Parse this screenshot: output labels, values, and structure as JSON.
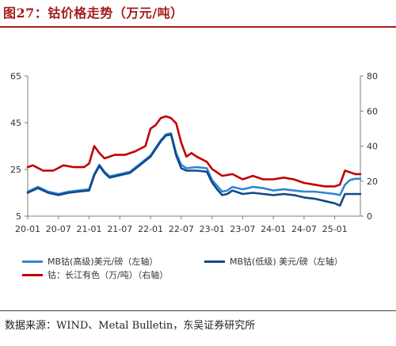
{
  "header": {
    "title": "图27：钴价格走势（万元/吨）"
  },
  "footer": {
    "source": "数据来源：WIND、Metal Bulletin，东吴证券研究所"
  },
  "colors": {
    "mb_high": "#2e86d6",
    "mb_low": "#0f4a8a",
    "co_cn": "#c00000",
    "axis": "#7f7f7f"
  },
  "chart_data": {
    "type": "line",
    "title": "",
    "xlabel": "",
    "ylabel_left": "",
    "ylabel_right": "",
    "xlim": [
      "2020-01",
      "2025-06"
    ],
    "x_ticks": [
      "20-01",
      "20-07",
      "21-01",
      "21-07",
      "22-01",
      "22-07",
      "23-01",
      "23-07",
      "24-01",
      "24-07",
      "25-01"
    ],
    "ylim_left": [
      5,
      65
    ],
    "yticks_left": [
      "5",
      "25",
      "45",
      "65"
    ],
    "ylim_right": [
      0,
      80
    ],
    "yticks_right": [
      "0",
      "20",
      "40",
      "60",
      "80"
    ],
    "grid": false,
    "legend_position": "bottom",
    "series": [
      {
        "name": "MB钴(高级)美元/磅（左轴）",
        "axis": "left",
        "color_key": "mb_high",
        "x": [
          "2020-01",
          "2020-03",
          "2020-05",
          "2020-07",
          "2020-09",
          "2020-11",
          "2021-01",
          "2021-02",
          "2021-03",
          "2021-04",
          "2021-05",
          "2021-07",
          "2021-09",
          "2021-11",
          "2022-01",
          "2022-03",
          "2022-04",
          "2022-05",
          "2022-06",
          "2022-07",
          "2022-08",
          "2022-10",
          "2022-12",
          "2023-01",
          "2023-02",
          "2023-03",
          "2023-04",
          "2023-05",
          "2023-07",
          "2023-09",
          "2023-11",
          "2024-01",
          "2024-03",
          "2024-05",
          "2024-07",
          "2024-09",
          "2024-11",
          "2025-01",
          "2025-02",
          "2025-03",
          "2025-04",
          "2025-05",
          "2025-06"
        ],
        "y": [
          15.5,
          17.5,
          15.5,
          14.5,
          15.5,
          16.0,
          16.5,
          23.0,
          27.0,
          24.0,
          22.0,
          23.0,
          24.0,
          27.5,
          31.0,
          37.5,
          40.0,
          40.5,
          32.0,
          27.0,
          25.5,
          26.0,
          25.5,
          20.5,
          18.0,
          15.5,
          16.0,
          17.5,
          16.5,
          17.5,
          17.0,
          16.0,
          16.5,
          16.0,
          15.5,
          15.5,
          15.0,
          14.5,
          14.0,
          18.5,
          20.5,
          21.0,
          21.0
        ]
      },
      {
        "name": "MB钴(低级) 美元/磅（左轴）",
        "axis": "left",
        "color_key": "mb_low",
        "x": [
          "2020-01",
          "2020-03",
          "2020-05",
          "2020-07",
          "2020-09",
          "2020-11",
          "2021-01",
          "2021-02",
          "2021-03",
          "2021-04",
          "2021-05",
          "2021-07",
          "2021-09",
          "2021-11",
          "2022-01",
          "2022-03",
          "2022-04",
          "2022-05",
          "2022-06",
          "2022-07",
          "2022-08",
          "2022-10",
          "2022-12",
          "2023-01",
          "2023-02",
          "2023-03",
          "2023-04",
          "2023-05",
          "2023-07",
          "2023-09",
          "2023-11",
          "2024-01",
          "2024-03",
          "2024-05",
          "2024-07",
          "2024-09",
          "2024-11",
          "2025-01",
          "2025-02",
          "2025-03",
          "2025-04",
          "2025-05",
          "2025-06"
        ],
        "y": [
          15.0,
          17.0,
          15.0,
          14.0,
          15.0,
          15.5,
          16.0,
          22.5,
          26.5,
          23.5,
          21.5,
          22.5,
          23.5,
          27.0,
          30.5,
          37.0,
          39.5,
          40.0,
          31.0,
          25.5,
          24.5,
          24.5,
          24.0,
          19.5,
          16.5,
          14.0,
          14.5,
          16.0,
          14.5,
          15.0,
          14.5,
          14.0,
          14.5,
          14.0,
          13.0,
          12.5,
          11.5,
          10.5,
          9.5,
          14.5,
          14.5,
          14.5,
          14.5
        ]
      },
      {
        "name": "钴：长江有色（万/吨）（右轴）",
        "axis": "right",
        "color_key": "co_cn",
        "x": [
          "2020-01",
          "2020-02",
          "2020-04",
          "2020-06",
          "2020-08",
          "2020-10",
          "2020-12",
          "2021-01",
          "2021-02",
          "2021-03",
          "2021-04",
          "2021-06",
          "2021-08",
          "2021-10",
          "2021-12",
          "2022-01",
          "2022-02",
          "2022-03",
          "2022-04",
          "2022-05",
          "2022-06",
          "2022-07",
          "2022-08",
          "2022-09",
          "2022-10",
          "2022-12",
          "2023-01",
          "2023-03",
          "2023-05",
          "2023-07",
          "2023-09",
          "2023-11",
          "2024-01",
          "2024-03",
          "2024-05",
          "2024-07",
          "2024-09",
          "2024-11",
          "2025-01",
          "2025-02",
          "2025-03",
          "2025-04",
          "2025-05",
          "2025-06"
        ],
        "y": [
          28,
          29,
          26,
          26,
          29,
          28,
          28,
          30,
          40,
          36,
          33,
          35,
          35,
          37,
          40,
          50,
          52,
          56,
          57,
          56,
          53,
          42,
          34,
          36,
          34,
          31,
          27,
          23,
          24,
          21,
          23,
          21,
          21,
          22,
          21,
          19,
          18,
          17,
          17,
          18,
          26,
          25,
          24,
          24
        ]
      }
    ]
  },
  "legend": {
    "items": [
      {
        "label": "MB钴(高级)美元/磅（左轴）",
        "color_key": "mb_high"
      },
      {
        "label": "MB钴(低级) 美元/磅（左轴）",
        "color_key": "mb_low"
      },
      {
        "label": "钴：长江有色（万/吨）（右轴）",
        "color_key": "co_cn"
      }
    ]
  }
}
